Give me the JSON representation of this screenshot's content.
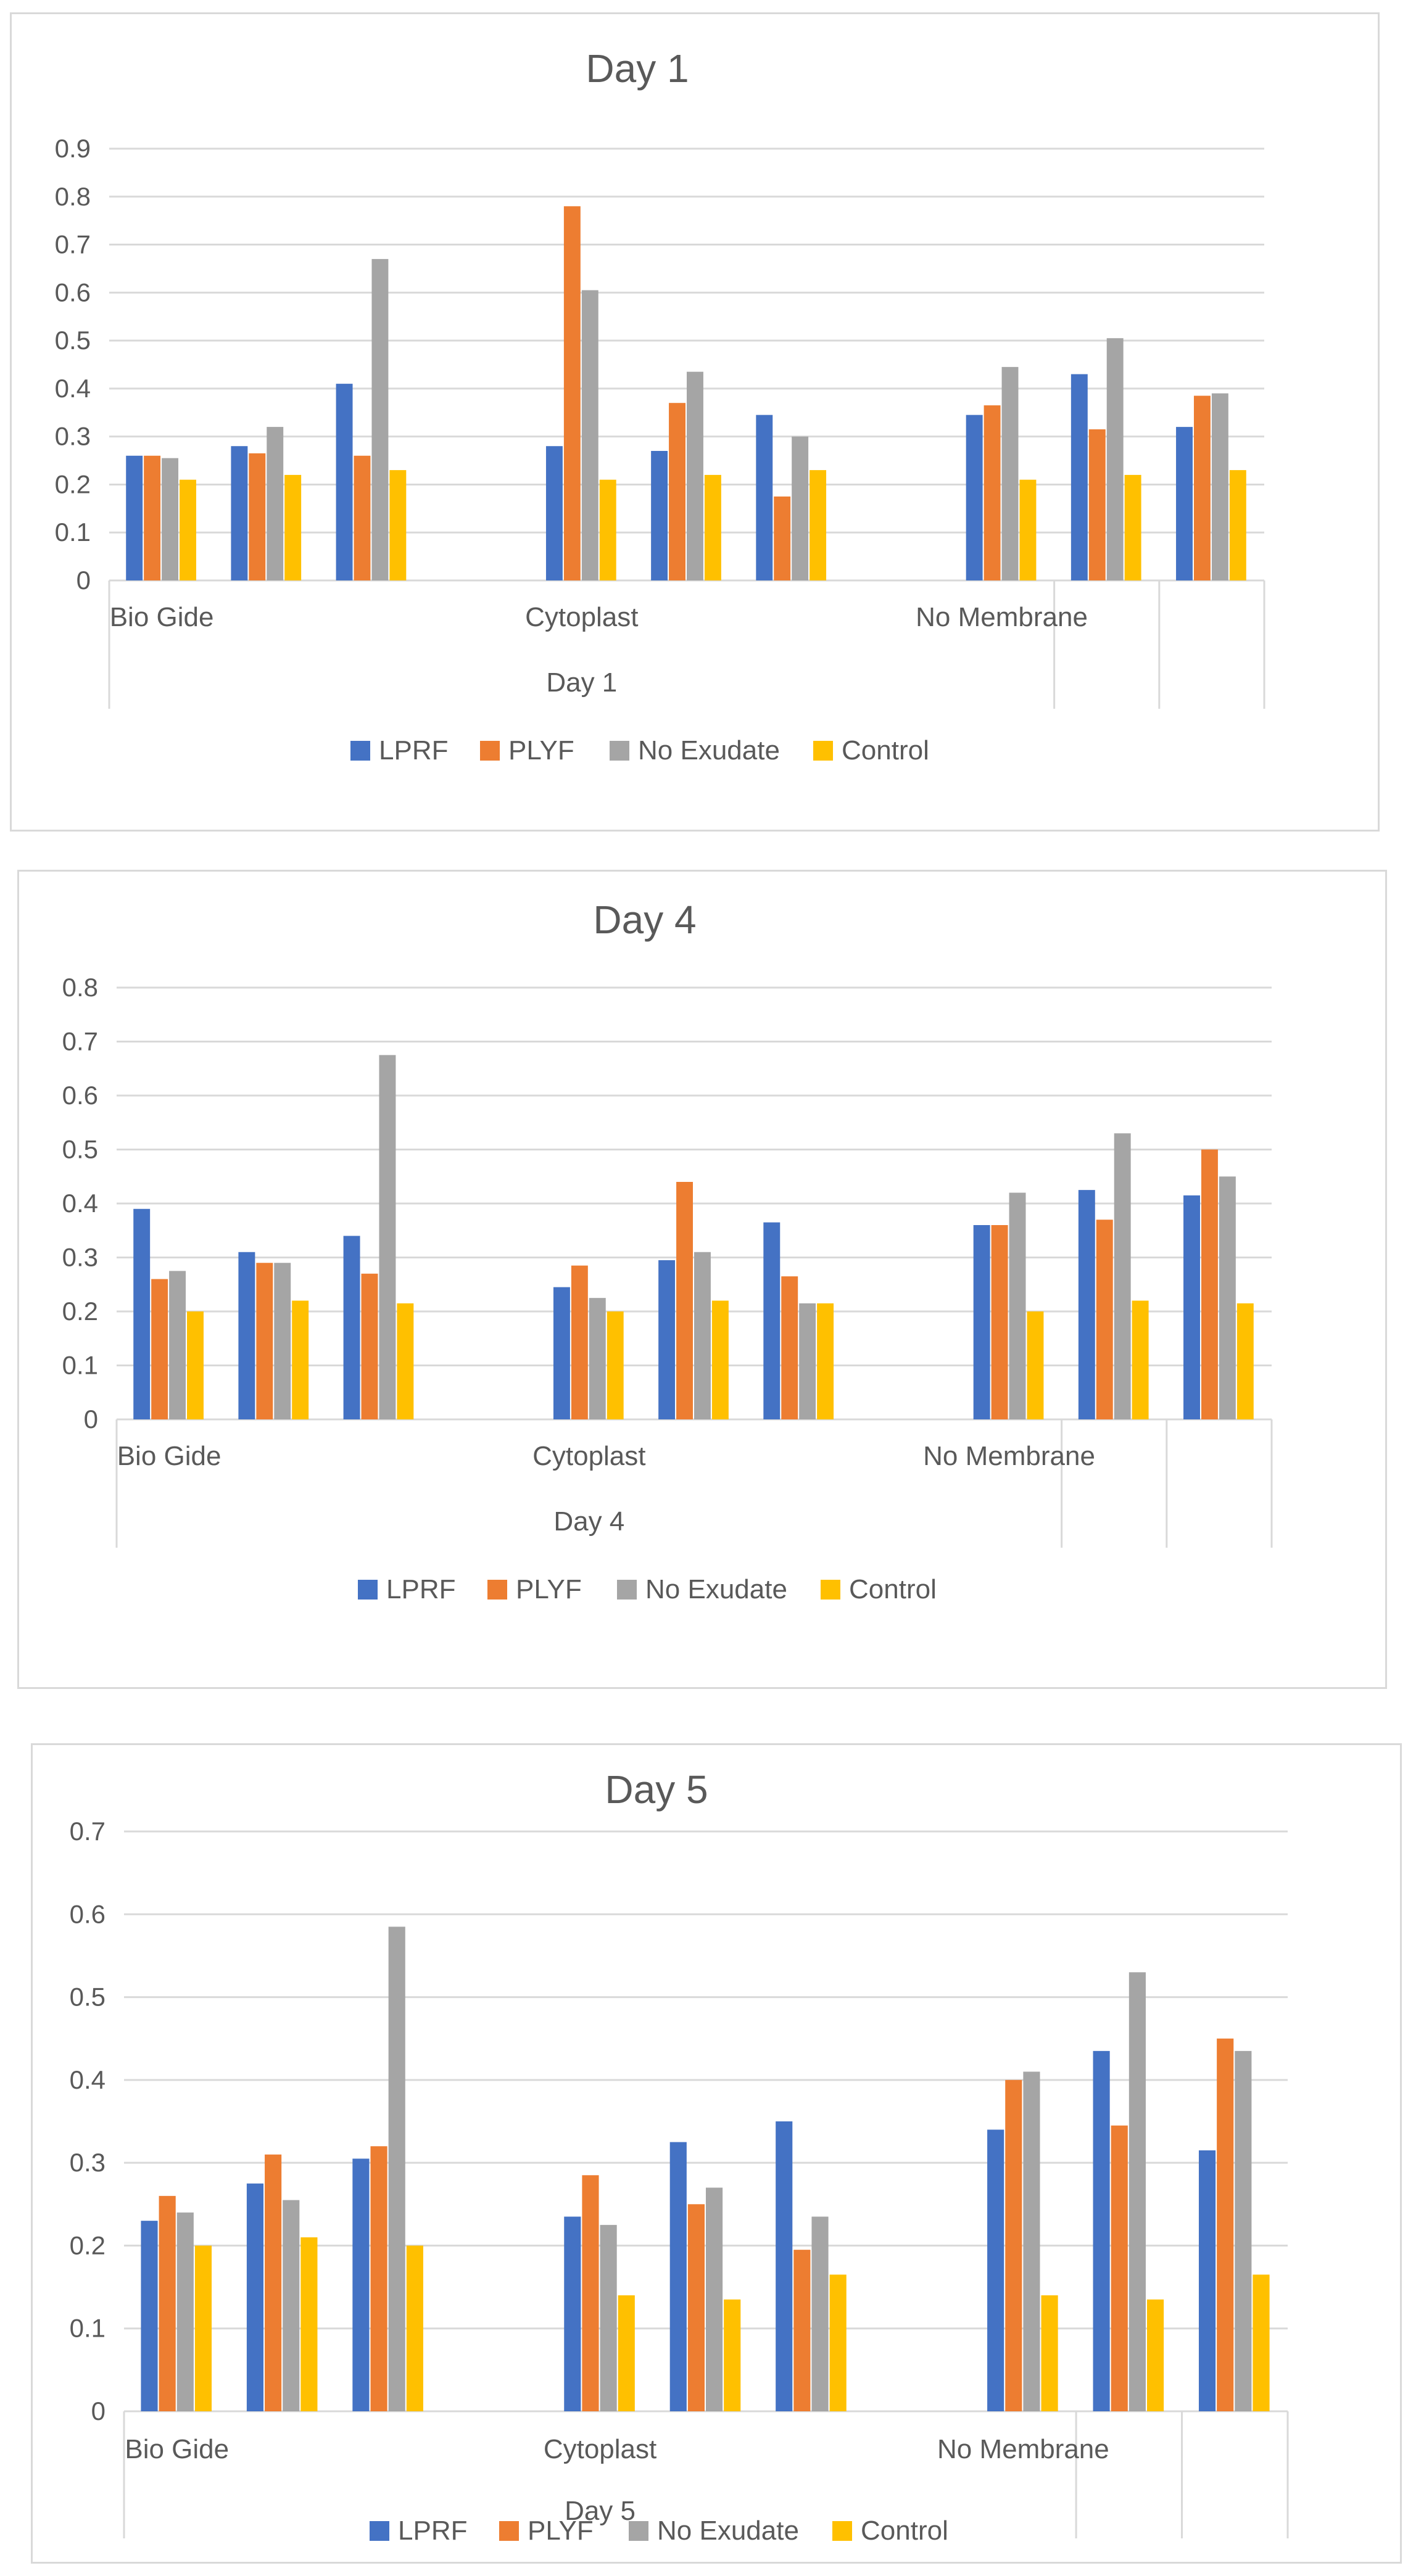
{
  "colors": {
    "LPRF": "#4472C4",
    "PLYF": "#ED7D31",
    "No Exudate": "#A5A5A5",
    "Control": "#FFC000"
  },
  "chart_data": [
    {
      "type": "bar",
      "title": "Day 1",
      "xlabel": "Day 1",
      "ylim": [
        0,
        0.9
      ],
      "yticks": [
        "0",
        "0.1",
        "0.2",
        "0.3",
        "0.4",
        "0.5",
        "0.6",
        "0.7",
        "0.8",
        "0.9"
      ],
      "groups": [
        "Bio Gide",
        "Cytoplast",
        "No Membrane"
      ],
      "legend": [
        "LPRF",
        "PLYF",
        "No Exudate",
        "Control"
      ],
      "legend_position": "bottom",
      "series": [
        {
          "name": "LPRF",
          "values": [
            0.26,
            0.28,
            0.41,
            null,
            0.28,
            0.27,
            0.345,
            null,
            0.345,
            0.43,
            0.32
          ]
        },
        {
          "name": "PLYF",
          "values": [
            0.26,
            0.265,
            0.26,
            null,
            0.78,
            0.37,
            0.175,
            null,
            0.365,
            0.315,
            0.385
          ]
        },
        {
          "name": "No Exudate",
          "values": [
            0.255,
            0.32,
            0.67,
            null,
            0.605,
            0.435,
            0.3,
            null,
            0.445,
            0.505,
            0.39
          ]
        },
        {
          "name": "Control",
          "values": [
            0.21,
            0.22,
            0.23,
            null,
            0.21,
            0.22,
            0.23,
            null,
            0.21,
            0.22,
            0.23
          ]
        }
      ]
    },
    {
      "type": "bar",
      "title": "Day 4",
      "xlabel": "Day 4",
      "ylim": [
        0,
        0.8
      ],
      "yticks": [
        "0",
        "0.1",
        "0.2",
        "0.3",
        "0.4",
        "0.5",
        "0.6",
        "0.7",
        "0.8"
      ],
      "groups": [
        "Bio Gide",
        "Cytoplast",
        "No Membrane"
      ],
      "legend": [
        "LPRF",
        "PLYF",
        "No Exudate",
        "Control"
      ],
      "legend_position": "bottom",
      "series": [
        {
          "name": "LPRF",
          "values": [
            0.39,
            0.31,
            0.34,
            null,
            0.245,
            0.295,
            0.365,
            null,
            0.36,
            0.425,
            0.415
          ]
        },
        {
          "name": "PLYF",
          "values": [
            0.26,
            0.29,
            0.27,
            null,
            0.285,
            0.44,
            0.265,
            null,
            0.36,
            0.37,
            0.5
          ]
        },
        {
          "name": "No Exudate",
          "values": [
            0.275,
            0.29,
            0.675,
            null,
            0.225,
            0.31,
            0.215,
            null,
            0.42,
            0.53,
            0.45
          ]
        },
        {
          "name": "Control",
          "values": [
            0.2,
            0.22,
            0.215,
            null,
            0.2,
            0.22,
            0.215,
            null,
            0.2,
            0.22,
            0.215
          ]
        }
      ]
    },
    {
      "type": "bar",
      "title": "Day 5",
      "xlabel": "Day 5",
      "ylim": [
        0,
        0.7
      ],
      "yticks": [
        "0",
        "0.1",
        "0.2",
        "0.3",
        "0.4",
        "0.5",
        "0.6",
        "0.7"
      ],
      "groups": [
        "Bio Gide",
        "Cytoplast",
        "No Membrane"
      ],
      "legend": [
        "LPRF",
        "PLYF",
        "No Exudate",
        "Control"
      ],
      "legend_position": "bottom",
      "series": [
        {
          "name": "LPRF",
          "values": [
            0.23,
            0.275,
            0.305,
            null,
            0.235,
            0.325,
            0.35,
            null,
            0.34,
            0.435,
            0.315
          ]
        },
        {
          "name": "PLYF",
          "values": [
            0.26,
            0.31,
            0.32,
            null,
            0.285,
            0.25,
            0.195,
            null,
            0.4,
            0.345,
            0.45
          ]
        },
        {
          "name": "No Exudate",
          "values": [
            0.24,
            0.255,
            0.585,
            null,
            0.225,
            0.27,
            0.235,
            null,
            0.41,
            0.53,
            0.435
          ]
        },
        {
          "name": "Control",
          "values": [
            0.2,
            0.21,
            0.2,
            null,
            0.14,
            0.135,
            0.165,
            null,
            0.14,
            0.135,
            0.165
          ]
        }
      ]
    }
  ]
}
